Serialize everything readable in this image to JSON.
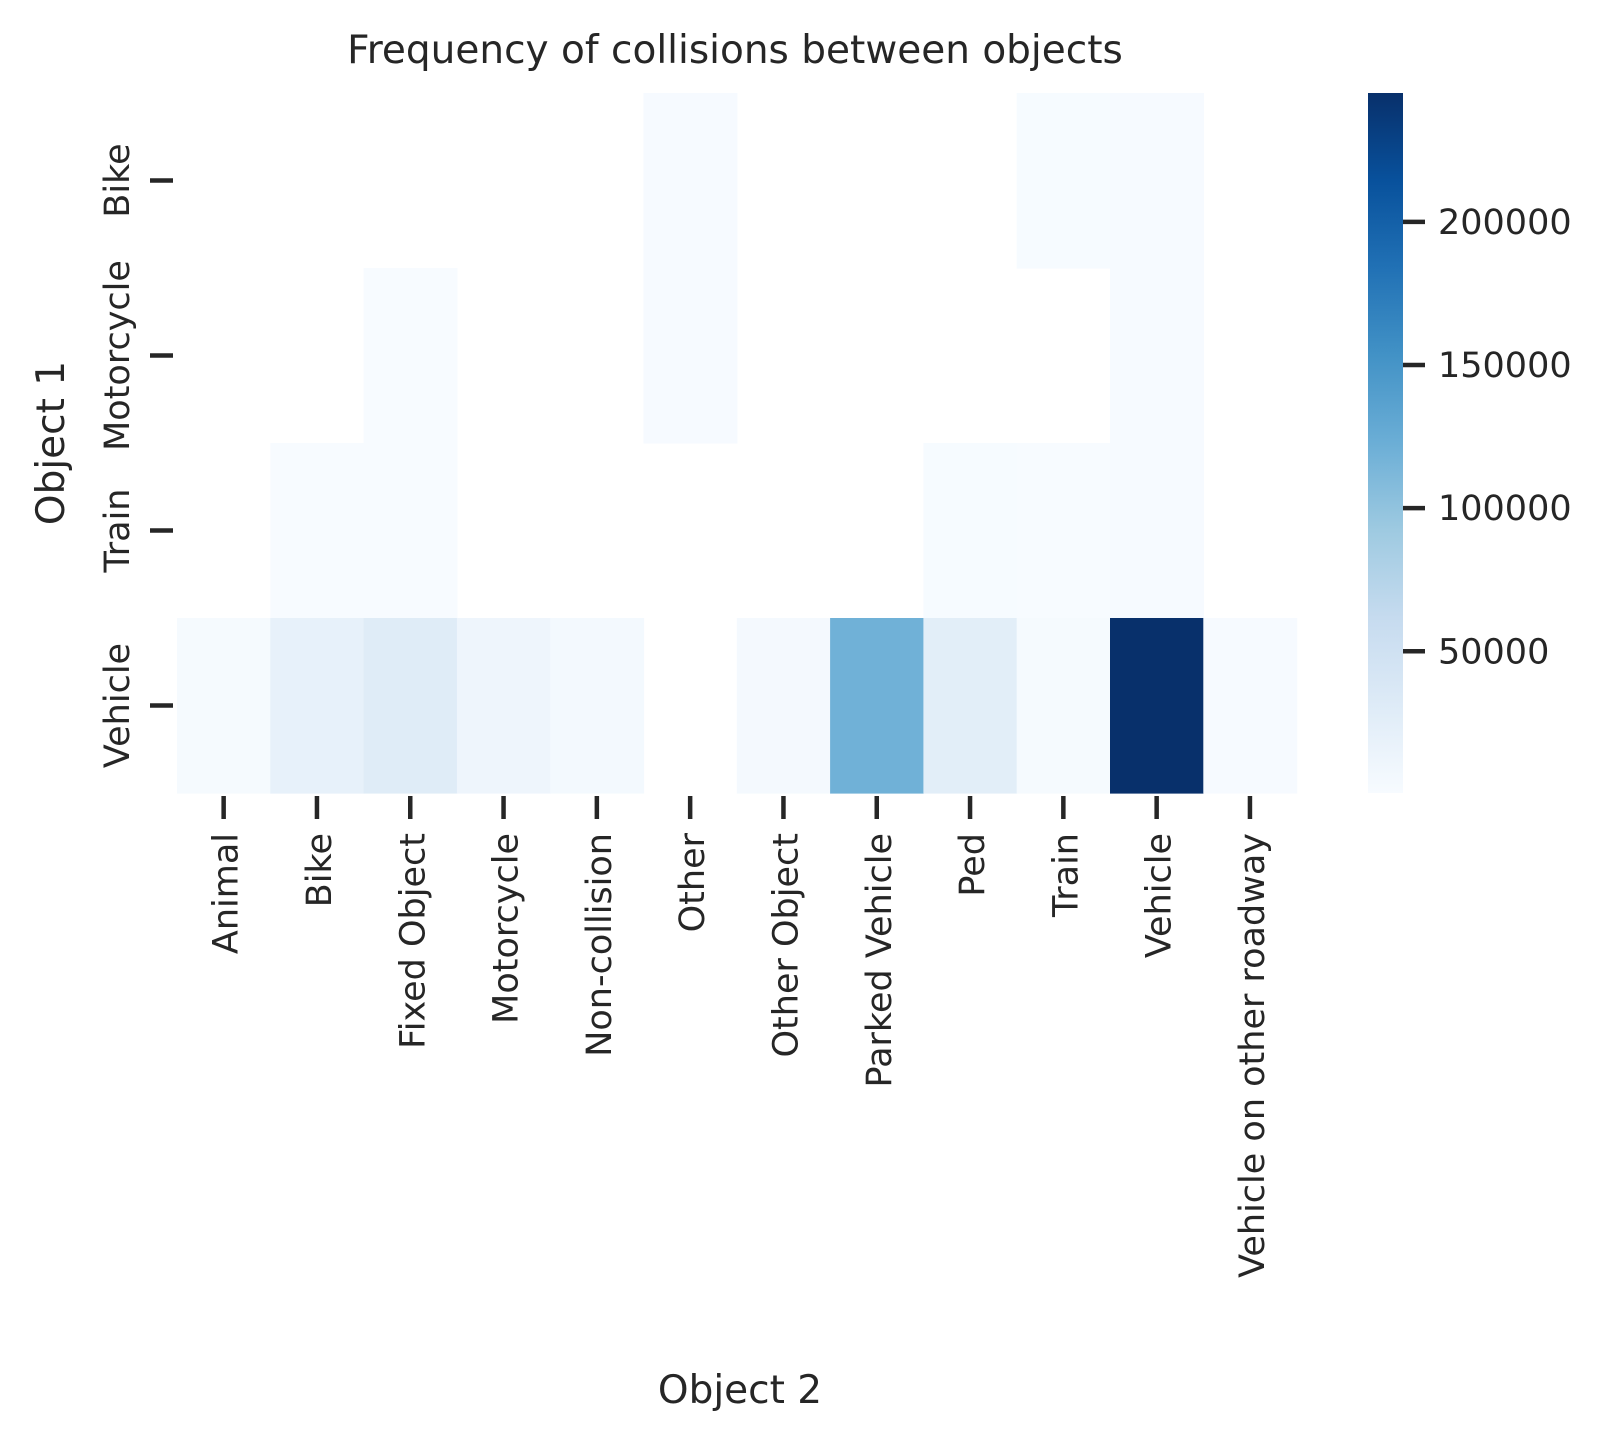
{
  "chart_data": {
    "type": "heatmap",
    "title": "Frequency of collisions between objects",
    "xlabel": "Object 2",
    "ylabel": "Object 1",
    "x_categories": [
      "Animal",
      "Bike",
      "Fixed Object",
      "Motorcycle",
      "Non-collision",
      "Other",
      "Other Object",
      "Parked Vehicle",
      "Ped",
      "Train",
      "Vehicle",
      "Vehicle on other roadway"
    ],
    "y_categories": [
      "Bike",
      "Motorcycle",
      "Train",
      "Vehicle"
    ],
    "values": [
      [
        null,
        null,
        null,
        null,
        null,
        1500,
        null,
        null,
        null,
        1200,
        1800,
        null
      ],
      [
        null,
        null,
        800,
        null,
        null,
        1500,
        null,
        null,
        null,
        null,
        1800,
        null
      ],
      [
        null,
        600,
        700,
        null,
        null,
        null,
        null,
        null,
        1200,
        1000,
        1500,
        null
      ],
      [
        3000,
        20000,
        30000,
        12000,
        5000,
        null,
        4000,
        120000,
        26000,
        3000,
        245000,
        1500
      ]
    ],
    "colormap": "Blues",
    "vmin": 500,
    "vmax": 245000,
    "colorbar_ticks": [
      50000,
      100000,
      150000,
      200000
    ],
    "colorbar_tick_labels": [
      "50000",
      "100000",
      "150000",
      "200000"
    ],
    "colorbar_placement": "right",
    "grid": false
  }
}
